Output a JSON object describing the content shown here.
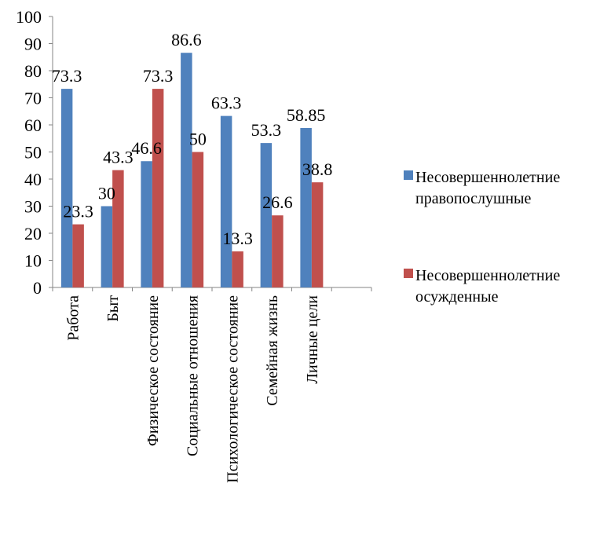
{
  "chart_data": {
    "type": "bar",
    "title": "",
    "xlabel": "",
    "ylabel": "",
    "ylim": [
      0,
      100
    ],
    "yticks": [
      0,
      10,
      20,
      30,
      40,
      50,
      60,
      70,
      80,
      90,
      100
    ],
    "categories": [
      "Работа",
      "Быт",
      "Физическое состояние",
      "Социальные отношения",
      "Психологическое состояние",
      "Семейная жизнь",
      "Личные цели"
    ],
    "series": [
      {
        "name": "Несовершеннолетние правопослушные",
        "legend_lines": [
          "Несовершеннолетние",
          "правопослушные"
        ],
        "color": "#4f81bd",
        "values": [
          73.3,
          30,
          46.6,
          86.6,
          63.3,
          53.3,
          58.85
        ],
        "labels": [
          "73.3",
          "30",
          "46.6",
          "86.6",
          "63.3",
          "53.3",
          "58.85"
        ]
      },
      {
        "name": "Несовершеннолетние осужденные",
        "legend_lines": [
          "Несовершеннолетние",
          "осужденные"
        ],
        "color": "#c0504d",
        "values": [
          23.3,
          43.3,
          73.3,
          50,
          13.3,
          26.6,
          38.8
        ],
        "labels": [
          "23.3",
          "43.3",
          "73.3",
          "50",
          "13.3",
          "26.6",
          "38.8"
        ]
      }
    ],
    "grid": false,
    "legend": "right"
  }
}
